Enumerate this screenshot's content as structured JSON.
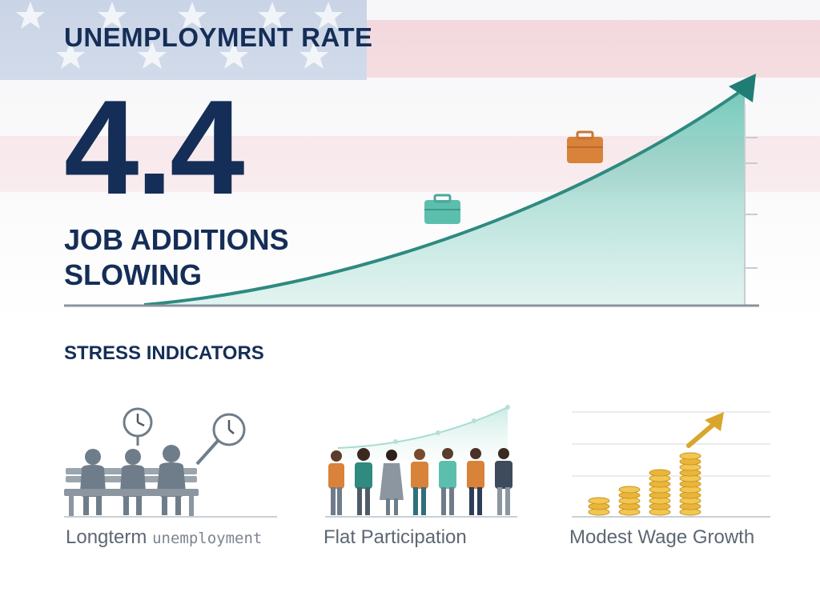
{
  "header": {
    "title": "UNEMPLOYMENT RATE",
    "value": "4.4",
    "subtitle_line1": "JOB ADDITIONS",
    "subtitle_line2": "SLOWING"
  },
  "section": {
    "title": "STRESS INDICATORS"
  },
  "indicators": [
    {
      "label_main": "Longterm",
      "label_tail": "unemployment",
      "icon": "bench-clock-icon"
    },
    {
      "label_main": "Flat Participation",
      "label_tail": "",
      "icon": "people-line-icon"
    },
    {
      "label_main": "Modest Wage Growth",
      "label_tail": "",
      "icon": "coin-stack-arrow-icon"
    }
  ],
  "colors": {
    "navy": "#152e57",
    "teal": "#5cbfae",
    "teal_dark": "#2f8a80",
    "orange": "#d9823a",
    "gold": "#eab53a",
    "gray": "#6f7d8a"
  }
}
